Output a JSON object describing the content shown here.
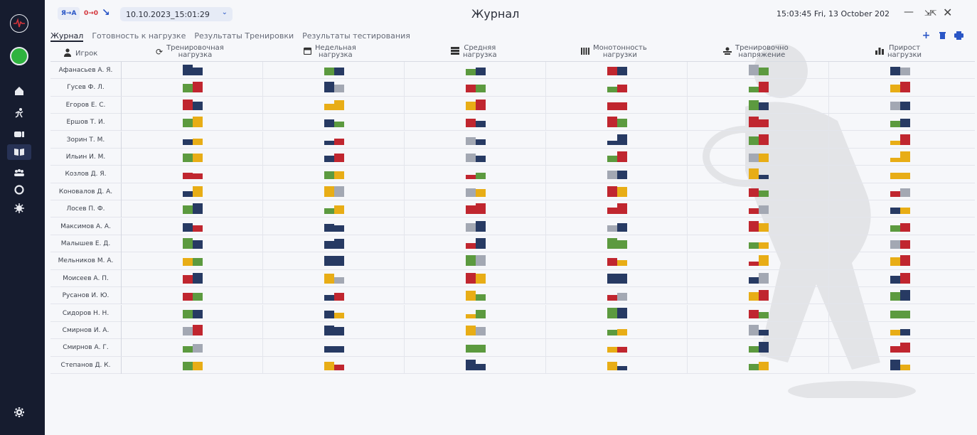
{
  "app": {
    "title": "Журнал",
    "lang_chip_1": "Я→А",
    "lang_chip_2": "0→0",
    "date_selector": "10.10.2023_15:01:29",
    "clock": "15:03:45 Fri, 13 October 202"
  },
  "tabs": [
    {
      "label": "Журнал"
    },
    {
      "label": "Готовность к нагрузке"
    },
    {
      "label": "Результаты Тренировки"
    },
    {
      "label": "Результаты тестирования"
    }
  ],
  "columns": [
    {
      "label": "Игрок",
      "icon": "person-icon"
    },
    {
      "label": "Тренировочная нагрузка",
      "line1": "Тренировочная",
      "line2": "нагрузка",
      "icon": "refresh-icon"
    },
    {
      "label": "Недельная нагрузка",
      "line1": "Недельная",
      "line2": "нагрузка",
      "icon": "calendar-icon"
    },
    {
      "label": "Средняя нагрузка",
      "line1": "Средняя",
      "line2": "нагрузка",
      "icon": "stack-icon"
    },
    {
      "label": "Монотонность нагрузки",
      "line1": "Монотонность",
      "line2": "нагрузки",
      "icon": "bars-icon"
    },
    {
      "label": "Тренировочное напряжение",
      "line1": "Тренировочно",
      "line2": "напряжение",
      "icon": "weight-icon"
    },
    {
      "label": "Прирост нагрузки",
      "line1": "Прирост",
      "line2": "нагрузки",
      "icon": "chart-icon"
    }
  ],
  "colors": {
    "navy": "#273a63",
    "red": "#c0262f",
    "green": "#5c9a3f",
    "gray": "#a3a8b3",
    "yellow": "#e8ad16",
    "sidebar": "#161c2f",
    "accent": "#2a56c6"
  },
  "players": [
    {
      "name": "Афанасьев А. Я.",
      "cells": [
        [
          "navy",
          "navy",
          1,
          0.7
        ],
        [
          "green",
          "navy",
          0.7,
          0.7
        ],
        [
          "green",
          "navy",
          0.6,
          0.7
        ],
        [
          "red",
          "navy",
          0.8,
          0.8
        ],
        [
          "gray",
          "green",
          1,
          0.7
        ],
        [
          "navy",
          "gray",
          0.8,
          0.7
        ]
      ]
    },
    {
      "name": "Гусев Ф. Л.",
      "cells": [
        [
          "green",
          "red",
          0.8,
          1
        ],
        [
          "navy",
          "gray",
          1,
          0.7
        ],
        [
          "red",
          "green",
          0.7,
          0.7
        ],
        [
          "green",
          "red",
          0.5,
          0.7
        ],
        [
          "green",
          "red",
          0.5,
          1
        ],
        [
          "yellow",
          "red",
          0.7,
          1
        ]
      ]
    },
    {
      "name": "Егоров Е. С.",
      "cells": [
        [
          "red",
          "navy",
          1,
          0.8
        ],
        [
          "yellow",
          "yellow",
          0.6,
          0.9
        ],
        [
          "yellow",
          "red",
          0.8,
          1
        ],
        [
          "red",
          "red",
          0.7,
          0.7
        ],
        [
          "green",
          "navy",
          0.9,
          0.7
        ],
        [
          "gray",
          "navy",
          0.8,
          0.8
        ]
      ]
    },
    {
      "name": "Ершов Т. И.",
      "cells": [
        [
          "green",
          "yellow",
          0.8,
          1
        ],
        [
          "navy",
          "green",
          0.7,
          0.5
        ],
        [
          "red",
          "navy",
          0.8,
          0.6
        ],
        [
          "red",
          "green",
          1,
          0.8
        ],
        [
          "red",
          "red",
          1,
          0.7
        ],
        [
          "green",
          "navy",
          0.6,
          0.8
        ]
      ]
    },
    {
      "name": "Зорин Т. М.",
      "cells": [
        [
          "navy",
          "yellow",
          0.5,
          0.6
        ],
        [
          "navy",
          "red",
          0.4,
          0.6
        ],
        [
          "gray",
          "navy",
          0.7,
          0.5
        ],
        [
          "navy",
          "navy",
          0.4,
          1
        ],
        [
          "green",
          "red",
          0.8,
          1
        ],
        [
          "yellow",
          "red",
          0.4,
          1
        ]
      ]
    },
    {
      "name": "Ильин И. М.",
      "cells": [
        [
          "green",
          "yellow",
          0.8,
          0.8
        ],
        [
          "navy",
          "red",
          0.6,
          0.8
        ],
        [
          "gray",
          "navy",
          0.8,
          0.6
        ],
        [
          "green",
          "red",
          0.6,
          1
        ],
        [
          "gray",
          "yellow",
          0.8,
          0.8
        ],
        [
          "yellow",
          "yellow",
          0.4,
          1
        ]
      ]
    },
    {
      "name": "Козлов Д. Я.",
      "cells": [
        [
          "red",
          "red",
          0.6,
          0.5
        ],
        [
          "green",
          "yellow",
          0.7,
          0.7
        ],
        [
          "red",
          "green",
          0.4,
          0.6
        ],
        [
          "gray",
          "navy",
          0.8,
          0.8
        ],
        [
          "yellow",
          "navy",
          1,
          0.4
        ],
        [
          "yellow",
          "yellow",
          0.6,
          0.6
        ]
      ]
    },
    {
      "name": "Коновалов Д. А.",
      "cells": [
        [
          "navy",
          "yellow",
          0.5,
          1
        ],
        [
          "yellow",
          "gray",
          1,
          1
        ],
        [
          "gray",
          "yellow",
          0.8,
          0.7
        ],
        [
          "red",
          "yellow",
          1,
          0.9
        ],
        [
          "red",
          "green",
          0.8,
          0.6
        ],
        [
          "red",
          "gray",
          0.5,
          0.8
        ]
      ]
    },
    {
      "name": "Лосев П. Ф.",
      "cells": [
        [
          "green",
          "navy",
          0.8,
          1
        ],
        [
          "green",
          "yellow",
          0.5,
          0.8
        ],
        [
          "red",
          "red",
          0.8,
          1
        ],
        [
          "red",
          "red",
          0.6,
          1
        ],
        [
          "red",
          "gray",
          0.5,
          0.8
        ],
        [
          "navy",
          "yellow",
          0.6,
          0.6
        ]
      ]
    },
    {
      "name": "Максимов А. А.",
      "cells": [
        [
          "navy",
          "red",
          0.8,
          0.6
        ],
        [
          "navy",
          "navy",
          0.7,
          0.6
        ],
        [
          "gray",
          "navy",
          0.8,
          1
        ],
        [
          "gray",
          "navy",
          0.6,
          0.8
        ],
        [
          "red",
          "yellow",
          1,
          0.8
        ],
        [
          "green",
          "red",
          0.6,
          0.8
        ]
      ]
    },
    {
      "name": "Малышев Е. Д.",
      "cells": [
        [
          "green",
          "navy",
          1,
          0.8
        ],
        [
          "navy",
          "navy",
          0.7,
          0.9
        ],
        [
          "red",
          "navy",
          0.5,
          1
        ],
        [
          "green",
          "green",
          1,
          0.8
        ],
        [
          "green",
          "yellow",
          0.6,
          0.6
        ],
        [
          "gray",
          "red",
          0.8,
          0.8
        ]
      ]
    },
    {
      "name": "Мельников М. А.",
      "cells": [
        [
          "yellow",
          "green",
          0.7,
          0.7
        ],
        [
          "navy",
          "navy",
          0.9,
          0.9
        ],
        [
          "green",
          "gray",
          1,
          1
        ],
        [
          "red",
          "yellow",
          0.7,
          0.5
        ],
        [
          "red",
          "yellow",
          0.4,
          1
        ],
        [
          "yellow",
          "red",
          0.8,
          1
        ]
      ]
    },
    {
      "name": "Моисеев А. П.",
      "cells": [
        [
          "red",
          "navy",
          0.8,
          1
        ],
        [
          "yellow",
          "gray",
          0.9,
          0.6
        ],
        [
          "red",
          "yellow",
          1,
          0.9
        ],
        [
          "navy",
          "navy",
          0.9,
          0.9
        ],
        [
          "navy",
          "gray",
          0.6,
          1
        ],
        [
          "navy",
          "red",
          0.7,
          1
        ]
      ]
    },
    {
      "name": "Русанов И. Ю.",
      "cells": [
        [
          "red",
          "green",
          0.7,
          0.7
        ],
        [
          "navy",
          "red",
          0.5,
          0.7
        ],
        [
          "yellow",
          "green",
          0.9,
          0.6
        ],
        [
          "red",
          "gray",
          0.5,
          0.7
        ],
        [
          "yellow",
          "red",
          0.8,
          1
        ],
        [
          "green",
          "navy",
          0.8,
          1
        ]
      ]
    },
    {
      "name": "Сидоров Н. Н.",
      "cells": [
        [
          "green",
          "navy",
          0.8,
          0.8
        ],
        [
          "navy",
          "yellow",
          0.7,
          0.5
        ],
        [
          "yellow",
          "green",
          0.4,
          0.8
        ],
        [
          "green",
          "navy",
          1,
          1
        ],
        [
          "red",
          "green",
          0.8,
          0.6
        ],
        [
          "green",
          "green",
          0.7,
          0.7
        ]
      ]
    },
    {
      "name": "Смирнов И. А.",
      "cells": [
        [
          "gray",
          "red",
          0.8,
          1
        ],
        [
          "navy",
          "navy",
          0.9,
          0.8
        ],
        [
          "yellow",
          "gray",
          0.9,
          0.8
        ],
        [
          "green",
          "yellow",
          0.5,
          0.6
        ],
        [
          "gray",
          "navy",
          1,
          0.5
        ],
        [
          "yellow",
          "navy",
          0.5,
          0.6
        ]
      ]
    },
    {
      "name": "Смирнов А. Г.",
      "cells": [
        [
          "green",
          "gray",
          0.6,
          0.8
        ],
        [
          "navy",
          "navy",
          0.6,
          0.6
        ],
        [
          "green",
          "green",
          0.7,
          0.7
        ],
        [
          "yellow",
          "red",
          0.5,
          0.5
        ],
        [
          "green",
          "navy",
          0.6,
          1
        ],
        [
          "red",
          "red",
          0.6,
          0.9
        ]
      ]
    },
    {
      "name": "Степанов Д. К.",
      "cells": [
        [
          "green",
          "yellow",
          0.8,
          0.8
        ],
        [
          "yellow",
          "red",
          0.8,
          0.5
        ],
        [
          "navy",
          "navy",
          1,
          0.6
        ],
        [
          "yellow",
          "navy",
          0.8,
          0.4
        ],
        [
          "green",
          "yellow",
          0.6,
          0.8
        ],
        [
          "navy",
          "yellow",
          1,
          0.5
        ]
      ]
    }
  ]
}
